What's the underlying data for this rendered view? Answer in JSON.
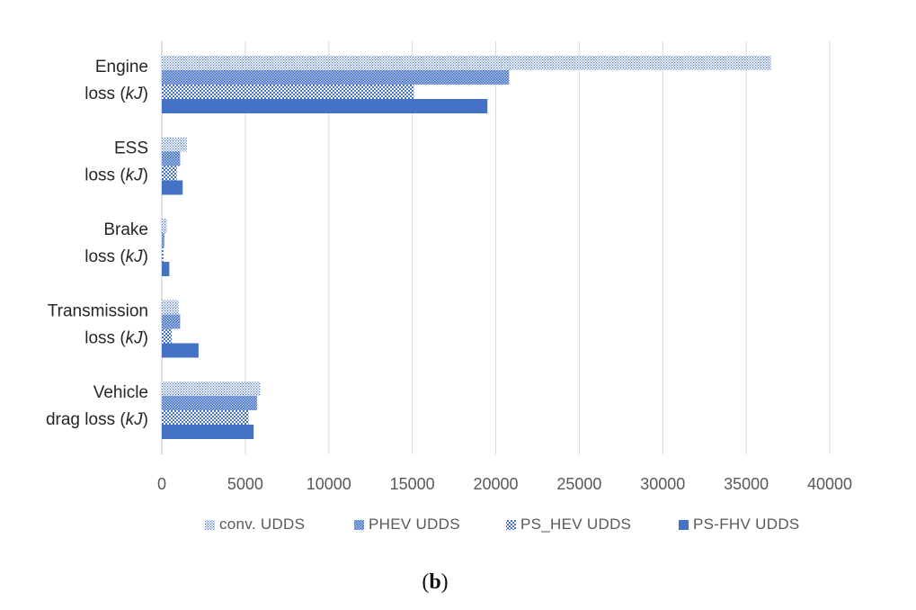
{
  "chart_data": {
    "type": "bar",
    "orientation": "horizontal",
    "categories": [
      [
        "Engine",
        "loss (kJ)"
      ],
      [
        "ESS",
        "loss (kJ)"
      ],
      [
        "Brake",
        "loss (kJ)"
      ],
      [
        "Transmission",
        "loss (kJ)"
      ],
      [
        "Vehicle",
        "drag loss (kJ)"
      ]
    ],
    "series": [
      {
        "name": "conv. UDDS",
        "pattern": "fine-dots",
        "values": [
          36500,
          1500,
          300,
          1000,
          5900
        ]
      },
      {
        "name": "PHEV UDDS",
        "pattern": "dense-dots",
        "values": [
          20800,
          1100,
          150,
          1100,
          5700
        ]
      },
      {
        "name": "PS_HEV UDDS",
        "pattern": "checker",
        "values": [
          15100,
          900,
          100,
          600,
          5200
        ]
      },
      {
        "name": "PS-FHV UDDS",
        "pattern": "solid",
        "values": [
          19500,
          1250,
          450,
          2200,
          5500
        ]
      }
    ],
    "xlim": [
      0,
      40000
    ],
    "xticks": [
      0,
      5000,
      10000,
      15000,
      20000,
      25000,
      30000,
      35000,
      40000
    ],
    "grid": true,
    "legend_position": "bottom",
    "caption": {
      "open": "(",
      "label": "b",
      "close": ")"
    },
    "colors": {
      "bar": "#4472c4",
      "grid": "#d9d9d9",
      "axis": "#bfbfbf"
    }
  }
}
